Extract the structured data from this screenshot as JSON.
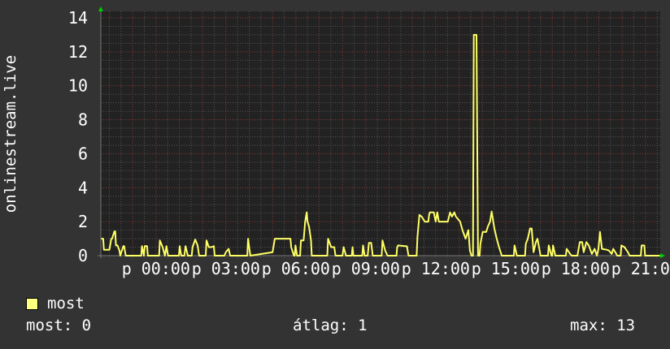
{
  "chart_data": {
    "type": "line",
    "ylabel": "onlinestream.live",
    "ylim": [
      0,
      14.38
    ],
    "yticks": [
      "0",
      "2",
      "4",
      "6",
      "8",
      "10",
      "12",
      "14"
    ],
    "xlim": [
      "21:38",
      "21:38"
    ],
    "xspan_hours": 24,
    "xticks": [
      {
        "label": "p 00:00",
        "time": "00:00"
      },
      {
        "label": "p 03:00",
        "time": "03:00"
      },
      {
        "label": "p 06:00",
        "time": "06:00"
      },
      {
        "label": "p 09:00",
        "time": "09:00"
      },
      {
        "label": "p 12:00",
        "time": "12:00"
      },
      {
        "label": "p 15:00",
        "time": "15:00"
      },
      {
        "label": "p 18:00",
        "time": "18:00"
      },
      {
        "label": "p 21:00",
        "time": "21:00"
      }
    ],
    "grid": true,
    "colors": {
      "background": "#333333",
      "plot": "#222222",
      "grid_minor": "#555555",
      "grid_major": "#8a3a3a",
      "line": "#ffff66",
      "axis_arrow": "#00cc00"
    },
    "series": [
      {
        "name": "most",
        "points": [
          [
            "21:39",
            1.0
          ],
          [
            "21:44",
            1.0
          ],
          [
            "21:46",
            0.35
          ],
          [
            "21:56",
            0.35
          ],
          [
            "22:00",
            0.35
          ],
          [
            "22:05",
            1.0
          ],
          [
            "22:07",
            1.0
          ],
          [
            "22:13",
            1.43
          ],
          [
            "22:15",
            1.43
          ],
          [
            "22:17",
            0.6
          ],
          [
            "22:21",
            0.6
          ],
          [
            "22:26",
            0.3
          ],
          [
            "22:28",
            0
          ],
          [
            "22:36",
            0.56
          ],
          [
            "22:38",
            0.56
          ],
          [
            "22:42",
            0
          ],
          [
            "23:22",
            0
          ],
          [
            "23:24",
            0.56
          ],
          [
            "23:29",
            0
          ],
          [
            "23:31",
            0.56
          ],
          [
            "23:37",
            0.56
          ],
          [
            "23:39",
            0
          ],
          [
            "00:08",
            0
          ],
          [
            "00:10",
            0.9
          ],
          [
            "00:17",
            0.5
          ],
          [
            "00:23",
            0
          ],
          [
            "00:27",
            0.56
          ],
          [
            "00:31",
            0
          ],
          [
            "00:59",
            0
          ],
          [
            "01:01",
            0.56
          ],
          [
            "01:05",
            0
          ],
          [
            "01:13",
            0
          ],
          [
            "01:16",
            0.56
          ],
          [
            "01:22",
            0
          ],
          [
            "01:32",
            0
          ],
          [
            "01:34",
            0.5
          ],
          [
            "01:41",
            0.95
          ],
          [
            "01:47",
            0.6
          ],
          [
            "01:51",
            0
          ],
          [
            "02:08",
            0
          ],
          [
            "02:10",
            0.9
          ],
          [
            "02:16",
            0.5
          ],
          [
            "02:23",
            0.5
          ],
          [
            "02:29",
            0.56
          ],
          [
            "02:31",
            0
          ],
          [
            "02:56",
            0
          ],
          [
            "03:00",
            0.2
          ],
          [
            "03:07",
            0.4
          ],
          [
            "03:11",
            0
          ],
          [
            "03:55",
            0
          ],
          [
            "03:57",
            1.0
          ],
          [
            "04:01",
            0.3
          ],
          [
            "04:03",
            0
          ],
          [
            "05:00",
            0.2
          ],
          [
            "05:06",
            1.0
          ],
          [
            "05:46",
            1.0
          ],
          [
            "05:48",
            0.5
          ],
          [
            "05:55",
            0
          ],
          [
            "05:57",
            0
          ],
          [
            "05:59",
            0.6
          ],
          [
            "06:03",
            0
          ],
          [
            "06:11",
            0
          ],
          [
            "06:13",
            0.9
          ],
          [
            "06:20",
            0.9
          ],
          [
            "06:24",
            2.0
          ],
          [
            "06:28",
            2.55
          ],
          [
            "06:30",
            2.0
          ],
          [
            "06:34",
            1.7
          ],
          [
            "06:39",
            0.9
          ],
          [
            "06:41",
            0
          ],
          [
            "07:21",
            0
          ],
          [
            "07:23",
            1.0
          ],
          [
            "07:31",
            0.5
          ],
          [
            "07:39",
            0.5
          ],
          [
            "07:42",
            0
          ],
          [
            "08:00",
            0
          ],
          [
            "08:03",
            0.5
          ],
          [
            "08:09",
            0
          ],
          [
            "08:24",
            0
          ],
          [
            "08:26",
            0.5
          ],
          [
            "08:28",
            0
          ],
          [
            "08:51",
            0
          ],
          [
            "08:53",
            0.6
          ],
          [
            "08:57",
            0
          ],
          [
            "09:05",
            0
          ],
          [
            "09:08",
            0.75
          ],
          [
            "09:14",
            0.75
          ],
          [
            "09:18",
            0
          ],
          [
            "09:41",
            0
          ],
          [
            "09:43",
            0.9
          ],
          [
            "09:50",
            0.3
          ],
          [
            "09:56",
            0
          ],
          [
            "10:19",
            0
          ],
          [
            "10:21",
            0.5
          ],
          [
            "10:23",
            0.6
          ],
          [
            "10:46",
            0.55
          ],
          [
            "10:50",
            0
          ],
          [
            "11:11",
            0
          ],
          [
            "11:13",
            1.1
          ],
          [
            "11:18",
            2.4
          ],
          [
            "11:24",
            2.3
          ],
          [
            "11:32",
            2.0
          ],
          [
            "11:41",
            2.0
          ],
          [
            "11:43",
            2.4
          ],
          [
            "11:45",
            2.55
          ],
          [
            "11:55",
            2.55
          ],
          [
            "12:00",
            2.0
          ],
          [
            "12:04",
            2.55
          ],
          [
            "12:08",
            2.0
          ],
          [
            "12:31",
            2.0
          ],
          [
            "12:37",
            2.55
          ],
          [
            "12:42",
            2.3
          ],
          [
            "12:48",
            2.55
          ],
          [
            "12:52",
            2.3
          ],
          [
            "13:03",
            2.0
          ],
          [
            "13:09",
            1.5
          ],
          [
            "13:17",
            1.0
          ],
          [
            "13:24",
            1.5
          ],
          [
            "13:28",
            0.3
          ],
          [
            "13:32",
            0
          ],
          [
            "13:36",
            0
          ],
          [
            "13:38",
            13
          ],
          [
            "13:45",
            13
          ],
          [
            "13:49",
            0
          ],
          [
            "13:53",
            0
          ],
          [
            "13:55",
            0.7
          ],
          [
            "14:01",
            1.4
          ],
          [
            "14:10",
            1.4
          ],
          [
            "14:14",
            1.7
          ],
          [
            "14:20",
            2.0
          ],
          [
            "14:24",
            2.6
          ],
          [
            "14:31",
            1.6
          ],
          [
            "14:37",
            1.0
          ],
          [
            "14:43",
            0.5
          ],
          [
            "14:50",
            0
          ],
          [
            "15:21",
            0
          ],
          [
            "15:23",
            0.6
          ],
          [
            "15:29",
            0
          ],
          [
            "15:50",
            0
          ],
          [
            "15:52",
            0.7
          ],
          [
            "15:57",
            1.0
          ],
          [
            "16:03",
            1.6
          ],
          [
            "16:07",
            1.6
          ],
          [
            "16:12",
            0.2
          ],
          [
            "16:18",
            0.8
          ],
          [
            "16:22",
            1.0
          ],
          [
            "16:26",
            0.5
          ],
          [
            "16:30",
            0
          ],
          [
            "16:49",
            0
          ],
          [
            "16:51",
            0.6
          ],
          [
            "16:58",
            0
          ],
          [
            "17:00",
            0
          ],
          [
            "17:02",
            0.6
          ],
          [
            "17:08",
            0
          ],
          [
            "17:35",
            0
          ],
          [
            "17:37",
            0.4
          ],
          [
            "17:46",
            0.1
          ],
          [
            "17:50",
            0
          ],
          [
            "18:05",
            0
          ],
          [
            "18:07",
            0.3
          ],
          [
            "18:11",
            0.8
          ],
          [
            "18:17",
            0.8
          ],
          [
            "18:21",
            0.2
          ],
          [
            "18:28",
            0.8
          ],
          [
            "18:34",
            0.6
          ],
          [
            "18:42",
            0.1
          ],
          [
            "18:49",
            0.4
          ],
          [
            "18:55",
            0
          ],
          [
            "18:59",
            0.4
          ],
          [
            "19:03",
            1.4
          ],
          [
            "19:08",
            0.4
          ],
          [
            "19:20",
            0.35
          ],
          [
            "19:26",
            0.3
          ],
          [
            "19:33",
            0.1
          ],
          [
            "19:37",
            0.4
          ],
          [
            "19:45",
            0.1
          ],
          [
            "19:47",
            0
          ],
          [
            "19:56",
            0
          ],
          [
            "19:58",
            0.6
          ],
          [
            "20:06",
            0.5
          ],
          [
            "20:15",
            0.2
          ],
          [
            "20:19",
            0
          ],
          [
            "20:48",
            0
          ],
          [
            "20:50",
            0.6
          ],
          [
            "20:57",
            0.6
          ],
          [
            "20:59",
            0
          ],
          [
            "21:37",
            0
          ]
        ]
      }
    ]
  },
  "legend": {
    "label": "most",
    "color": "#ffff80"
  },
  "stats": {
    "current": "most: 0",
    "average": "átlag: 1",
    "maximum": "max: 13"
  }
}
